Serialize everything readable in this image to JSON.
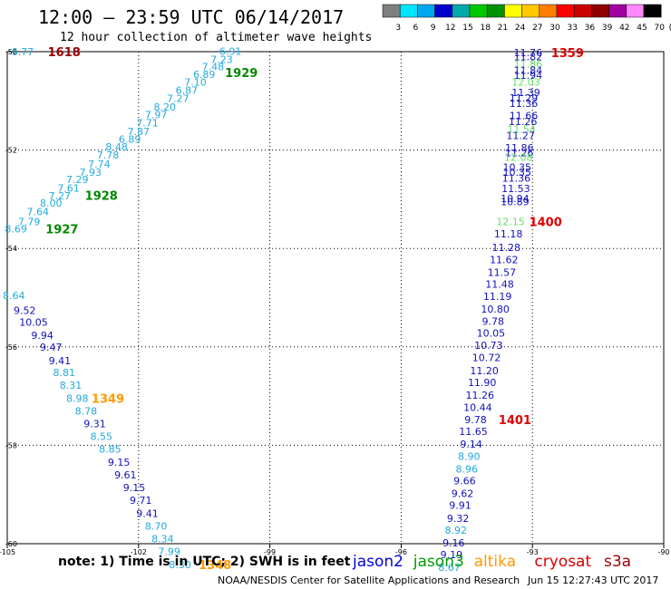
{
  "chart_data": {
    "type": "scatter",
    "title": "12:00 – 23:59 UTC 06/14/2017",
    "subtitle": "12 hour collection of altimeter wave heights",
    "xlim": [
      -105,
      -90
    ],
    "ylim": [
      -60,
      -50
    ],
    "x_ticks": [
      -105,
      -102,
      -99,
      -96,
      -93,
      -90
    ],
    "y_ticks": [
      -50,
      -52,
      -54,
      -56,
      -58,
      -60
    ],
    "grid": true,
    "color_scale": {
      "unit": "(ft)",
      "labels": [
        "3",
        "6",
        "9",
        "12",
        "15",
        "18",
        "21",
        "24",
        "27",
        "30",
        "33",
        "36",
        "39",
        "42",
        "45",
        "70"
      ],
      "colors": [
        "#7f7f7f",
        "#00e5ff",
        "#00a8f0",
        "#0000cc",
        "#00aaaa",
        "#00c800",
        "#009000",
        "#ffff00",
        "#ffc800",
        "#ff8000",
        "#ff0000",
        "#c80000",
        "#900000",
        "#a000a0",
        "#ff88ff",
        "#000000"
      ]
    },
    "value_colors": {
      "gray": "#888888",
      "cyan": "#33ccf0",
      "lblue": "#22aadd",
      "blue": "#1111bb",
      "teal": "#22aaaa",
      "lgreen": "#66e066",
      "green": "#008800",
      "orange": "#ff9900",
      "red": "#dd0000",
      "dred": "#990000"
    },
    "passes": [
      {
        "name": "left-track",
        "points": [
          {
            "lon": -104.8,
            "lat": -53.6,
            "value": "8.69",
            "color": "lblue"
          },
          {
            "lon": -104.5,
            "lat": -53.45,
            "value": "7.79",
            "color": "lblue"
          },
          {
            "lon": -104.3,
            "lat": -53.25,
            "value": "7.64",
            "color": "lblue"
          },
          {
            "lon": -104.0,
            "lat": -53.08,
            "value": "8.00",
            "color": "lblue"
          },
          {
            "lon": -103.8,
            "lat": -52.93,
            "value": "7.27",
            "color": "lblue"
          },
          {
            "lon": -103.6,
            "lat": -52.77,
            "value": "7.61",
            "color": "lblue"
          },
          {
            "lon": -103.4,
            "lat": -52.6,
            "value": "7.29",
            "color": "lblue"
          },
          {
            "lon": -103.1,
            "lat": -52.45,
            "value": "7.93",
            "color": "lblue"
          },
          {
            "lon": -102.9,
            "lat": -52.28,
            "value": "7.74",
            "color": "lblue"
          },
          {
            "lon": -102.7,
            "lat": -52.1,
            "value": "7.78",
            "color": "lblue"
          },
          {
            "lon": -102.5,
            "lat": -51.93,
            "value": "8.48",
            "color": "lblue"
          },
          {
            "lon": -102.2,
            "lat": -51.78,
            "value": "6.89",
            "color": "lblue"
          },
          {
            "lon": -102.0,
            "lat": -51.62,
            "value": "7.87",
            "color": "lblue"
          },
          {
            "lon": -101.8,
            "lat": -51.45,
            "value": "7.71",
            "color": "lblue"
          },
          {
            "lon": -101.6,
            "lat": -51.28,
            "value": "7.97",
            "color": "lblue"
          },
          {
            "lon": -101.4,
            "lat": -51.12,
            "value": "8.20",
            "color": "lblue"
          },
          {
            "lon": -101.1,
            "lat": -50.95,
            "value": "7.27",
            "color": "lblue"
          },
          {
            "lon": -100.9,
            "lat": -50.78,
            "value": "6.87",
            "color": "lblue"
          },
          {
            "lon": -100.7,
            "lat": -50.62,
            "value": "7.10",
            "color": "lblue"
          },
          {
            "lon": -100.5,
            "lat": -50.46,
            "value": "6.89",
            "color": "lblue"
          },
          {
            "lon": -100.3,
            "lat": -50.3,
            "value": "7.48",
            "color": "lblue"
          },
          {
            "lon": -100.1,
            "lat": -50.16,
            "value": "7.23",
            "color": "lblue"
          },
          {
            "lon": -99.9,
            "lat": -49.99,
            "value": "6.91",
            "color": "lblue"
          },
          {
            "lon": -104.65,
            "lat": -50.0,
            "value": "6.77",
            "color": "lblue"
          }
        ]
      },
      {
        "name": "lower-left-track",
        "points": [
          {
            "lon": -104.85,
            "lat": -54.95,
            "value": "8.64",
            "color": "lblue"
          },
          {
            "lon": -104.6,
            "lat": -55.26,
            "value": "9.52",
            "color": "blue"
          },
          {
            "lon": -104.4,
            "lat": -55.5,
            "value": "10.05",
            "color": "blue"
          },
          {
            "lon": -104.2,
            "lat": -55.76,
            "value": "9.94",
            "color": "blue"
          },
          {
            "lon": -104.0,
            "lat": -56.0,
            "value": "9.47",
            "color": "blue"
          },
          {
            "lon": -103.8,
            "lat": -56.28,
            "value": "9.41",
            "color": "blue"
          },
          {
            "lon": -103.7,
            "lat": -56.52,
            "value": "8.81",
            "color": "lblue"
          },
          {
            "lon": -103.55,
            "lat": -56.78,
            "value": "8.31",
            "color": "lblue"
          },
          {
            "lon": -103.4,
            "lat": -57.04,
            "value": "8.98",
            "color": "lblue"
          },
          {
            "lon": -103.2,
            "lat": -57.3,
            "value": "8.78",
            "color": "lblue"
          },
          {
            "lon": -103.0,
            "lat": -57.56,
            "value": "9.31",
            "color": "blue"
          },
          {
            "lon": -102.85,
            "lat": -57.82,
            "value": "8.55",
            "color": "lblue"
          },
          {
            "lon": -102.65,
            "lat": -58.08,
            "value": "8.85",
            "color": "lblue"
          },
          {
            "lon": -102.45,
            "lat": -58.34,
            "value": "9.15",
            "color": "blue"
          },
          {
            "lon": -102.3,
            "lat": -58.6,
            "value": "9.61",
            "color": "blue"
          },
          {
            "lon": -102.1,
            "lat": -58.86,
            "value": "9.15",
            "color": "blue"
          },
          {
            "lon": -101.95,
            "lat": -59.12,
            "value": "9.71",
            "color": "blue"
          },
          {
            "lon": -101.8,
            "lat": -59.38,
            "value": "9.41",
            "color": "blue"
          },
          {
            "lon": -101.6,
            "lat": -59.64,
            "value": "8.70",
            "color": "lblue"
          },
          {
            "lon": -101.45,
            "lat": -59.9,
            "value": "8.34",
            "color": "lblue"
          },
          {
            "lon": -101.3,
            "lat": -60.16,
            "value": "7.99",
            "color": "lblue"
          },
          {
            "lon": -101.05,
            "lat": -60.42,
            "value": "8.30",
            "color": "lblue"
          }
        ]
      },
      {
        "name": "right-track",
        "points": [
          {
            "lon": -93.1,
            "lat": -50.02,
            "value": "11.76",
            "color": "blue"
          },
          {
            "lon": -93.1,
            "lat": -50.1,
            "value": "11.82",
            "color": "blue"
          },
          {
            "lon": -93.1,
            "lat": -50.25,
            "value": "11.86",
            "color": "lgreen"
          },
          {
            "lon": -93.1,
            "lat": -50.38,
            "value": "11.84",
            "color": "blue"
          },
          {
            "lon": -93.1,
            "lat": -50.48,
            "value": "11.94",
            "color": "blue"
          },
          {
            "lon": -93.15,
            "lat": -50.62,
            "value": "12.03",
            "color": "lgreen"
          },
          {
            "lon": -93.15,
            "lat": -50.83,
            "value": "11.39",
            "color": "blue"
          },
          {
            "lon": -93.2,
            "lat": -50.94,
            "value": "11.29",
            "color": "blue"
          },
          {
            "lon": -93.2,
            "lat": -51.05,
            "value": "11.36",
            "color": "blue"
          },
          {
            "lon": -93.2,
            "lat": -51.3,
            "value": "11.66",
            "color": "blue"
          },
          {
            "lon": -93.22,
            "lat": -51.42,
            "value": "11.26",
            "color": "blue"
          },
          {
            "lon": -93.25,
            "lat": -51.57,
            "value": "11.54",
            "color": "lgreen"
          },
          {
            "lon": -93.27,
            "lat": -51.7,
            "value": "11.27",
            "color": "blue"
          },
          {
            "lon": -93.3,
            "lat": -51.95,
            "value": "11.86",
            "color": "blue"
          },
          {
            "lon": -93.3,
            "lat": -52.05,
            "value": "11.26",
            "color": "blue"
          },
          {
            "lon": -93.32,
            "lat": -52.15,
            "value": "12.08",
            "color": "lgreen"
          },
          {
            "lon": -93.35,
            "lat": -52.35,
            "value": "10.35",
            "color": "blue"
          },
          {
            "lon": -93.35,
            "lat": -52.45,
            "value": "10.35",
            "color": "blue"
          },
          {
            "lon": -93.37,
            "lat": -52.57,
            "value": "11.36",
            "color": "blue"
          },
          {
            "lon": -93.38,
            "lat": -52.78,
            "value": "11.53",
            "color": "blue"
          },
          {
            "lon": -93.4,
            "lat": -52.98,
            "value": "10.94",
            "color": "blue"
          },
          {
            "lon": -93.4,
            "lat": -53.05,
            "value": "10.89",
            "color": "blue"
          },
          {
            "lon": -93.5,
            "lat": -53.45,
            "value": "12.15",
            "color": "lgreen"
          },
          {
            "lon": -93.55,
            "lat": -53.7,
            "value": "11.18",
            "color": "blue"
          },
          {
            "lon": -93.6,
            "lat": -53.98,
            "value": "11.28",
            "color": "blue"
          },
          {
            "lon": -93.65,
            "lat": -54.23,
            "value": "11.62",
            "color": "blue"
          },
          {
            "lon": -93.7,
            "lat": -54.48,
            "value": "11.57",
            "color": "blue"
          },
          {
            "lon": -93.75,
            "lat": -54.72,
            "value": "11.48",
            "color": "blue"
          },
          {
            "lon": -93.8,
            "lat": -54.97,
            "value": "11.19",
            "color": "blue"
          },
          {
            "lon": -93.85,
            "lat": -55.23,
            "value": "10.80",
            "color": "blue"
          },
          {
            "lon": -93.9,
            "lat": -55.48,
            "value": "9.78",
            "color": "blue"
          },
          {
            "lon": -93.95,
            "lat": -55.72,
            "value": "10.05",
            "color": "blue"
          },
          {
            "lon": -94.0,
            "lat": -55.97,
            "value": "10.73",
            "color": "blue"
          },
          {
            "lon": -94.05,
            "lat": -56.22,
            "value": "10.72",
            "color": "blue"
          },
          {
            "lon": -94.1,
            "lat": -56.48,
            "value": "11.20",
            "color": "blue"
          },
          {
            "lon": -94.15,
            "lat": -56.72,
            "value": "11.90",
            "color": "blue"
          },
          {
            "lon": -94.2,
            "lat": -56.98,
            "value": "11.26",
            "color": "blue"
          },
          {
            "lon": -94.25,
            "lat": -57.23,
            "value": "10.44",
            "color": "blue"
          },
          {
            "lon": -94.3,
            "lat": -57.48,
            "value": "9.78",
            "color": "blue"
          },
          {
            "lon": -94.35,
            "lat": -57.72,
            "value": "11.65",
            "color": "blue"
          },
          {
            "lon": -94.4,
            "lat": -57.97,
            "value": "9.14",
            "color": "blue"
          },
          {
            "lon": -94.45,
            "lat": -58.22,
            "value": "8.90",
            "color": "lblue"
          },
          {
            "lon": -94.5,
            "lat": -58.48,
            "value": "8.96",
            "color": "lblue"
          },
          {
            "lon": -94.55,
            "lat": -58.72,
            "value": "9.66",
            "color": "blue"
          },
          {
            "lon": -94.6,
            "lat": -58.98,
            "value": "9.62",
            "color": "blue"
          },
          {
            "lon": -94.65,
            "lat": -59.22,
            "value": "9.91",
            "color": "blue"
          },
          {
            "lon": -94.7,
            "lat": -59.48,
            "value": "9.32",
            "color": "blue"
          },
          {
            "lon": -94.75,
            "lat": -59.72,
            "value": "8.92",
            "color": "lblue"
          },
          {
            "lon": -94.8,
            "lat": -59.98,
            "value": "9.16",
            "color": "blue"
          },
          {
            "lon": -94.85,
            "lat": -60.22,
            "value": "9.19",
            "color": "blue"
          },
          {
            "lon": -94.9,
            "lat": -60.48,
            "value": "8.67",
            "color": "lblue"
          }
        ]
      }
    ],
    "time_labels": [
      {
        "text": "1618",
        "lon": -103.7,
        "lat": -50.0,
        "color": "dred"
      },
      {
        "text": "1929",
        "lon": -99.65,
        "lat": -50.42,
        "color": "green"
      },
      {
        "text": "1928",
        "lon": -102.85,
        "lat": -52.92,
        "color": "green"
      },
      {
        "text": "1927",
        "lon": -103.75,
        "lat": -53.6,
        "color": "green"
      },
      {
        "text": "1349",
        "lon": -102.7,
        "lat": -57.04,
        "color": "orange"
      },
      {
        "text": "1348",
        "lon": -100.25,
        "lat": -60.42,
        "color": "orange"
      },
      {
        "text": "1359",
        "lon": -92.2,
        "lat": -50.02,
        "color": "red"
      },
      {
        "text": "1400",
        "lon": -92.7,
        "lat": -53.45,
        "color": "red"
      },
      {
        "text": "1401",
        "lon": -93.4,
        "lat": -57.48,
        "color": "red"
      }
    ],
    "note": "note: 1) Time is in UTC; 2) SWH is in feet",
    "legend": [
      {
        "name": "jason2",
        "color": "#0000dd"
      },
      {
        "name": "jason3",
        "color": "#009900"
      },
      {
        "name": "altika",
        "color": "#ff9900"
      },
      {
        "name": "cryosat",
        "color": "#dd0000"
      },
      {
        "name": "s3a",
        "color": "#990000"
      }
    ],
    "footer_left": "NOAA/NESDIS Center for Satellite Applications and Research",
    "footer_right": "Jun 15 12:27:43 UTC 2017"
  }
}
